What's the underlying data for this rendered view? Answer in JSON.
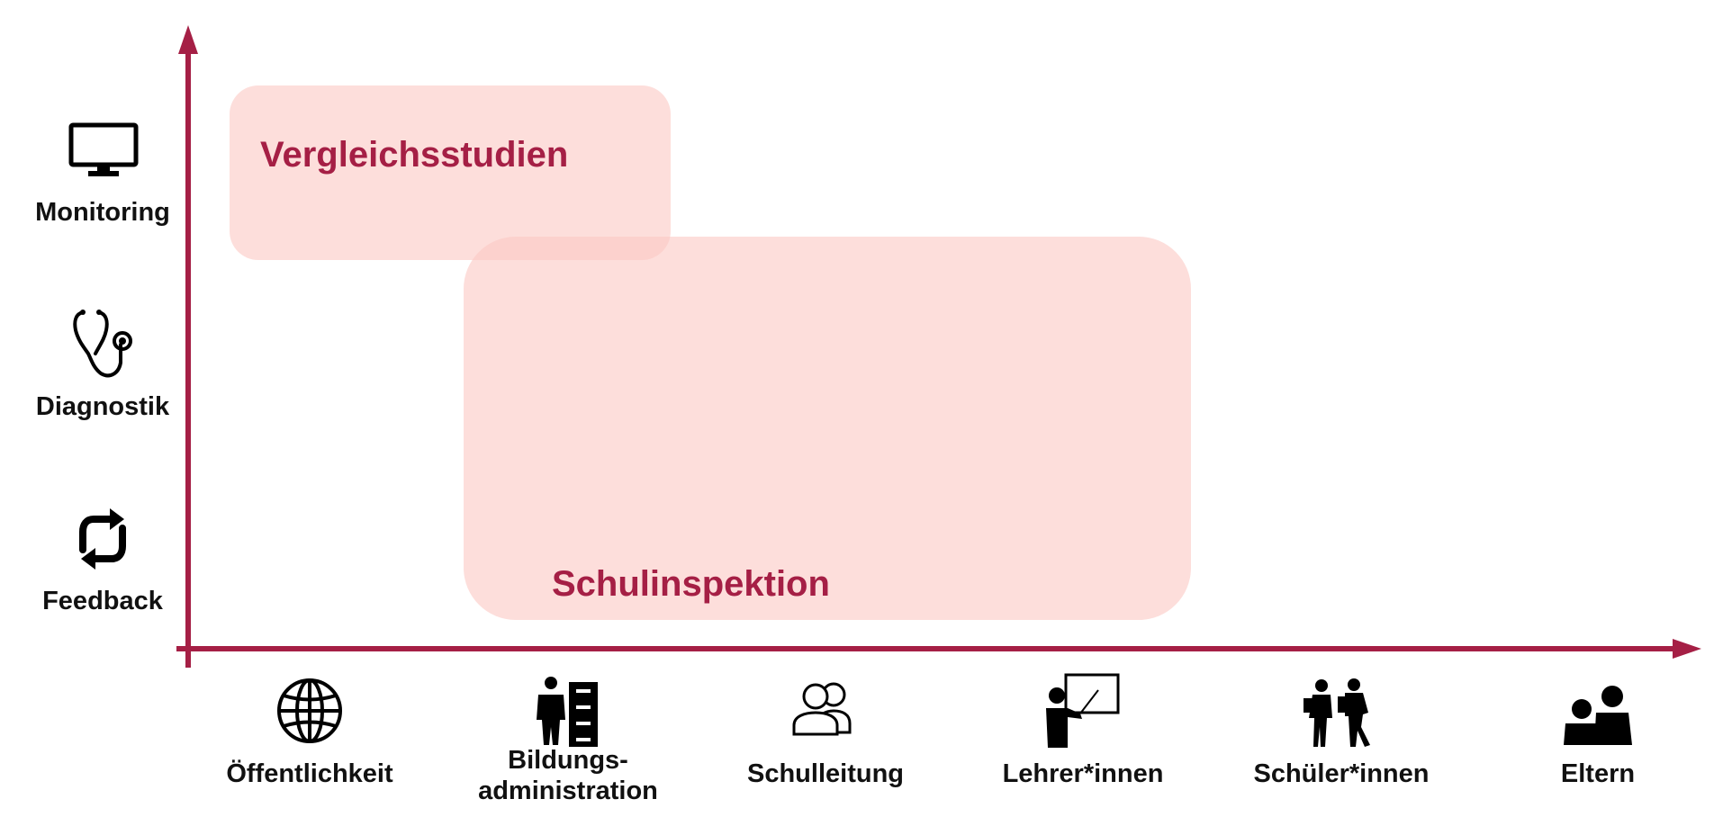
{
  "colors": {
    "axis": "#a51f45",
    "region_fill": "#fcc9c5",
    "region_text": "#a51f45",
    "icon": "#000000"
  },
  "y_axis": {
    "levels": [
      {
        "label": "Monitoring",
        "icon": "monitor-icon"
      },
      {
        "label": "Diagnostik",
        "icon": "stethoscope-icon"
      },
      {
        "label": "Feedback",
        "icon": "refresh-cycle-icon"
      }
    ]
  },
  "x_axis": {
    "groups": [
      {
        "label": "Öffentlichkeit",
        "icon": "globe-icon"
      },
      {
        "label_line1": "Bildungs-",
        "label_line2": "administration",
        "icon": "administration-files-icon"
      },
      {
        "label": "Schulleitung",
        "icon": "people-outline-icon"
      },
      {
        "label": "Lehrer*innen",
        "icon": "teacher-board-icon"
      },
      {
        "label": "Schüler*innen",
        "icon": "pupils-icon"
      },
      {
        "label": "Eltern",
        "icon": "parents-icon"
      }
    ]
  },
  "regions": {
    "vergleichsstudien": {
      "title": "Vergleichsstudien"
    },
    "schulinspektion": {
      "title": "Schulinspektion"
    }
  }
}
